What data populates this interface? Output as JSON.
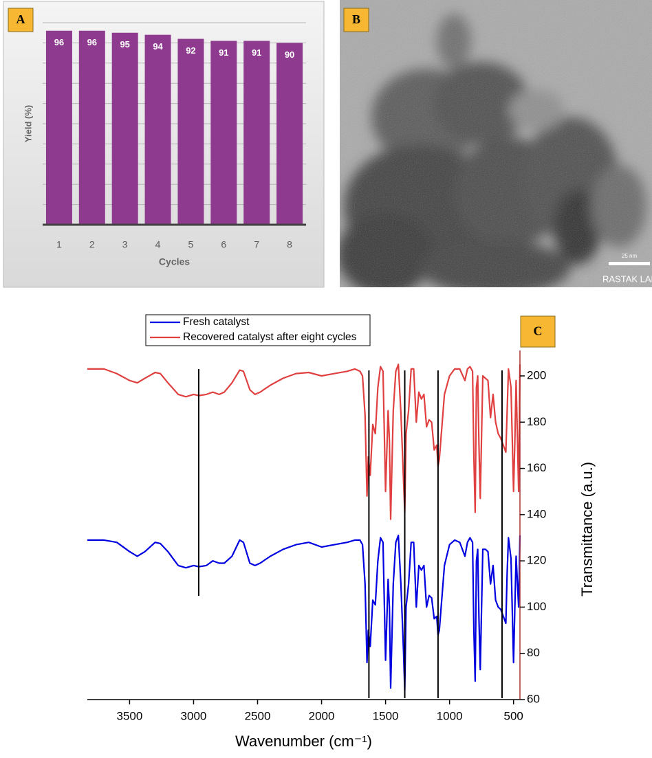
{
  "chart_data": [
    {
      "type": "bar",
      "panel": "A",
      "ylabel": "Yield (%)",
      "xlabel": "Cycles",
      "categories": [
        "1",
        "2",
        "3",
        "4",
        "5",
        "6",
        "7",
        "8"
      ],
      "values": [
        96,
        96,
        95,
        94,
        92,
        91,
        91,
        90
      ],
      "color": "#8e3a8e",
      "ylim": [
        0,
        100
      ],
      "yticks": [
        0,
        10,
        20,
        30,
        40,
        50,
        60,
        70,
        80,
        90,
        100
      ],
      "grid": true
    },
    {
      "type": "line",
      "panel": "C",
      "xlabel": "Wavenumber (cm⁻¹)",
      "ylabel": "Transmittance (a.u.)",
      "xlim": [
        3830,
        450
      ],
      "xticks": [
        3500,
        3000,
        2500,
        2000,
        1500,
        1000,
        500
      ],
      "ylim": [
        60,
        211
      ],
      "yticks": [
        60,
        80,
        100,
        120,
        140,
        160,
        180,
        200
      ],
      "reference_lines": [
        2960,
        1630,
        1350,
        1090,
        590
      ],
      "x": [
        3830,
        3700,
        3600,
        3500,
        3440,
        3380,
        3300,
        3260,
        3200,
        3120,
        3060,
        3000,
        2960,
        2900,
        2850,
        2800,
        2760,
        2700,
        2640,
        2610,
        2560,
        2520,
        2480,
        2400,
        2300,
        2200,
        2100,
        2000,
        1900,
        1800,
        1740,
        1700,
        1680,
        1660,
        1645,
        1635,
        1620,
        1600,
        1580,
        1560,
        1540,
        1520,
        1500,
        1480,
        1470,
        1460,
        1440,
        1420,
        1400,
        1380,
        1360,
        1350,
        1340,
        1320,
        1300,
        1280,
        1260,
        1240,
        1220,
        1200,
        1180,
        1160,
        1140,
        1120,
        1100,
        1090,
        1080,
        1060,
        1040,
        1000,
        960,
        920,
        880,
        860,
        840,
        820,
        810,
        800,
        790,
        780,
        770,
        760,
        740,
        720,
        700,
        680,
        660,
        640,
        620,
        600,
        580,
        560,
        550,
        540,
        520,
        500,
        490,
        480,
        460,
        450
      ],
      "series": [
        {
          "name": "Fresh catalyst",
          "color": "#0000e0",
          "values": [
            129,
            129,
            128,
            124,
            122,
            124,
            128,
            127.5,
            124,
            118,
            117,
            118,
            117.5,
            118,
            120,
            119,
            119,
            122,
            129,
            128,
            119,
            118,
            119,
            122,
            125,
            127,
            128,
            126,
            127,
            128,
            129,
            129,
            127,
            110,
            76,
            90,
            83,
            103,
            101,
            120,
            130,
            128,
            77,
            112,
            100,
            65,
            110,
            128,
            131,
            110,
            81,
            64,
            100,
            110,
            128,
            128,
            100,
            118,
            116,
            118,
            100,
            105,
            104,
            95,
            96,
            88,
            90,
            104,
            118,
            127,
            129,
            128,
            122,
            128,
            130,
            128,
            90,
            68,
            120,
            125,
            95,
            73,
            125,
            125,
            124,
            110,
            118,
            103,
            100,
            99,
            96,
            93,
            115,
            130,
            121,
            76,
            100,
            122,
            100,
            131
          ]
        },
        {
          "name": "Recovered catalyst after eight cycles",
          "color": "#e04040",
          "values": [
            203,
            203,
            201,
            198,
            197,
            199,
            201.5,
            201,
            197,
            192,
            191,
            192,
            191.5,
            192,
            193,
            192,
            193,
            197,
            202.5,
            202,
            194,
            192,
            193,
            196,
            199,
            201,
            201.5,
            200,
            201,
            202,
            203,
            202,
            200,
            183,
            148,
            165,
            157,
            179,
            175,
            195,
            204,
            202,
            150,
            185,
            172,
            138,
            185,
            202,
            205,
            184,
            155,
            141,
            175,
            185,
            203,
            203,
            180,
            193,
            190,
            192,
            178,
            181,
            180,
            168,
            170,
            161,
            164,
            178,
            192,
            200,
            203,
            203,
            198,
            203,
            204,
            202,
            165,
            141,
            195,
            200,
            170,
            147,
            200,
            199,
            198,
            182,
            192,
            180,
            175,
            173,
            170,
            167,
            185,
            203,
            195,
            150,
            172,
            198,
            150,
            205
          ]
        }
      ]
    }
  ],
  "image": {
    "panel": "B",
    "scale_bar": "25 nm",
    "watermark": "RASTAK LAB"
  }
}
